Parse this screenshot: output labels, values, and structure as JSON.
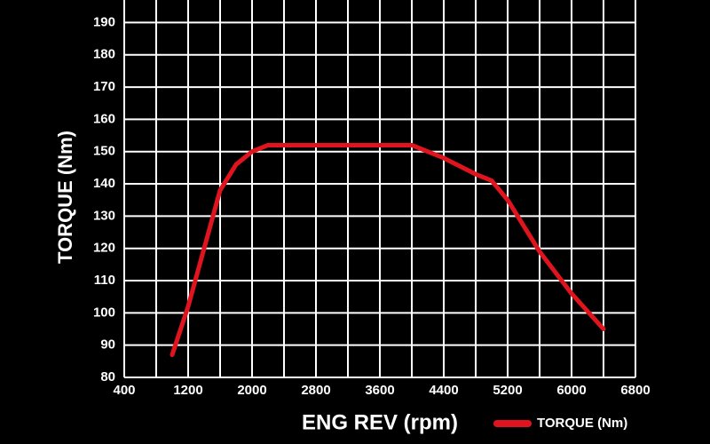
{
  "chart_data": {
    "type": "line",
    "x_label": "ENG REV (rpm)",
    "y_label": "TORQUE (Nm)",
    "x": [
      1000,
      1200,
      1400,
      1600,
      1800,
      2000,
      2200,
      2400,
      2800,
      3200,
      3600,
      4000,
      4400,
      4800,
      5000,
      5200,
      5600,
      6000,
      6400
    ],
    "series": [
      {
        "name": "TORQUE (Nm)",
        "color": "#e0141e",
        "values": [
          87,
          102,
          120,
          138,
          146,
          150,
          152,
          152,
          152,
          152,
          152,
          152,
          148,
          143,
          141,
          135,
          119,
          106,
          95
        ]
      }
    ],
    "xlim": [
      400,
      6800
    ],
    "xticks": [
      400,
      1200,
      2000,
      2800,
      3600,
      4400,
      5200,
      6000,
      6800
    ],
    "ylim": [
      80,
      197
    ],
    "yticks": [
      80,
      90,
      100,
      110,
      120,
      130,
      140,
      150,
      160,
      170,
      180,
      190
    ],
    "grid": true,
    "legend": "bottom-right"
  }
}
